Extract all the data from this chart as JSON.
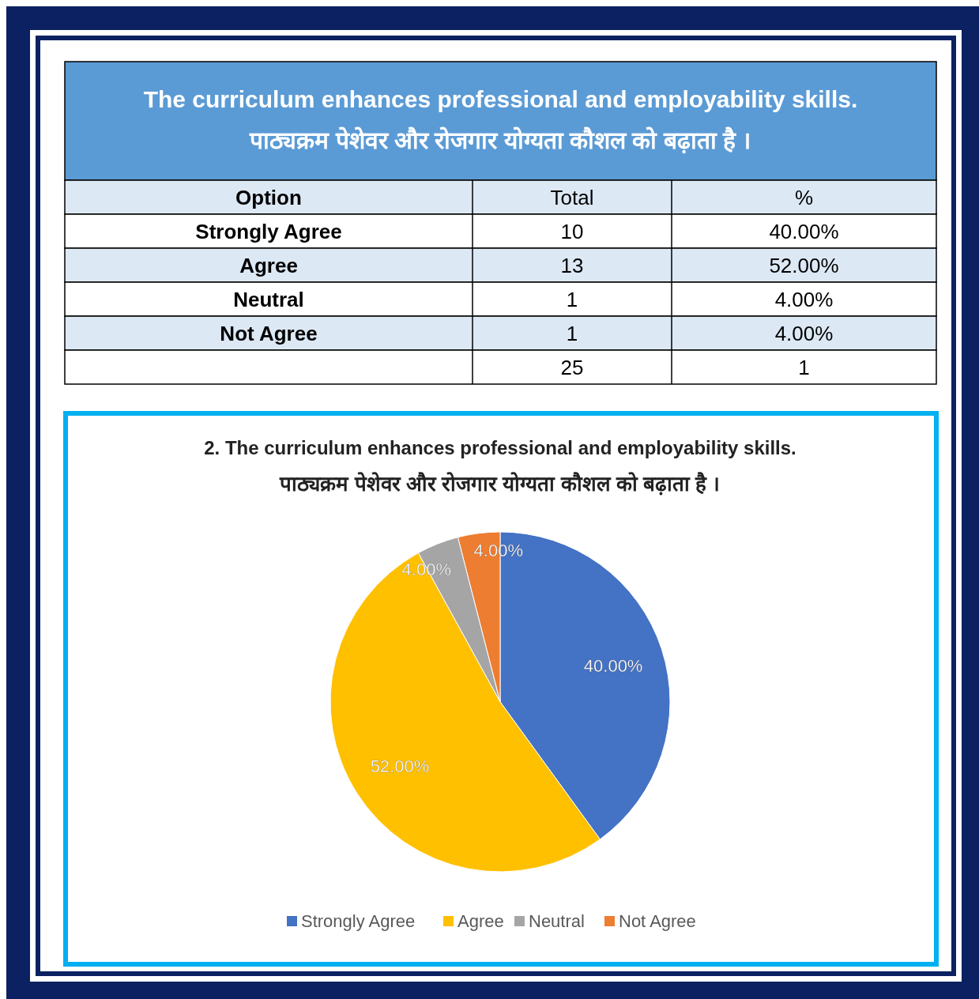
{
  "chart_data": [
    {
      "type": "other",
      "title": "The curriculum enhances professional and employability skills.",
      "subtitle": "पाठ्यक्रम पेशेवर और रोजगार योग्यता कौशल को बढ़ाता है ।",
      "xlabel": "Option",
      "categories": [
        "Strongly Agree",
        "Agree",
        "Neutral",
        "Not Agree"
      ],
      "data_labels": true,
      "series": [
        {
          "name": "Total",
          "color": "#000000",
          "values": [
            10,
            13,
            1,
            1
          ]
        },
        {
          "name": "%",
          "color": "#000000",
          "values": [
            40,
            52,
            4,
            4
          ],
          "value_labels": [
            "40.00%",
            "52.00%",
            "4.00%",
            "4.00%"
          ]
        }
      ],
      "totals": [
        "25",
        "1"
      ]
    },
    {
      "type": "pie",
      "title": "2. The curriculum enhances professional  and employability skills.",
      "subtitle": "पाठ्यक्रम पेशेवर और रोजगार योग्यता कौशल को बढ़ाता है ।",
      "categories": [
        "Strongly Agree",
        "Agree",
        "Neutral",
        "Not Agree"
      ],
      "values": [
        40,
        52,
        4,
        4
      ],
      "colors": [
        "#4472c4",
        "#ffc000",
        "#a5a5a5",
        "#ed7d31"
      ],
      "value_labels": [
        "40.00%",
        "52.00%",
        "4.00%",
        "4.00%"
      ],
      "legend": "bottom"
    }
  ]
}
